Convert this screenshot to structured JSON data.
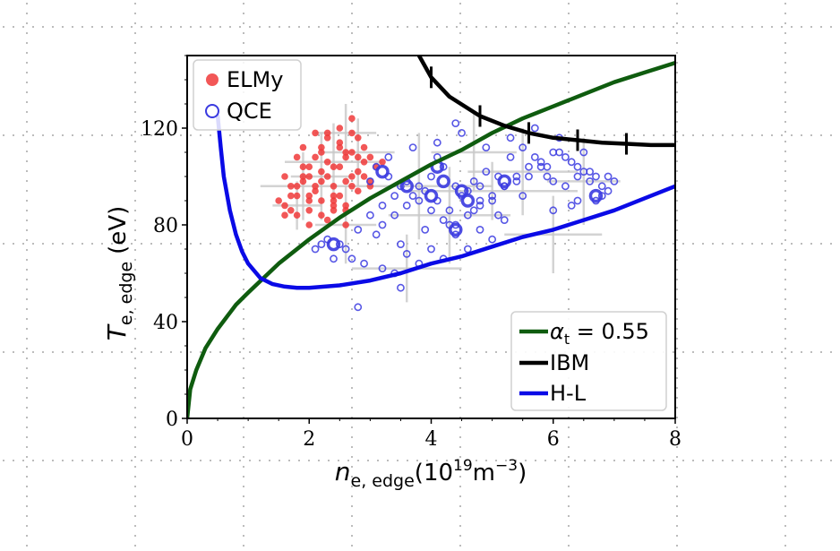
{
  "chart_data": {
    "type": "scatter",
    "title": "",
    "xlabel": {
      "base": "n",
      "sub": "e, edge",
      "unit_pre": "(10",
      "unit_sup1": "19",
      "unit_mid": "m",
      "unit_sup2": "−3",
      "unit_post": ")"
    },
    "ylabel": {
      "base": "T",
      "sub": "e, edge",
      "unit": "(eV)"
    },
    "xlim": [
      0,
      8
    ],
    "ylim": [
      0,
      150
    ],
    "x_ticks": [
      0,
      2,
      4,
      6,
      8
    ],
    "y_ticks": [
      0,
      40,
      80,
      120
    ],
    "x_tick_labels": [
      "0",
      "2",
      "4",
      "6",
      "8"
    ],
    "y_tick_labels": [
      "0",
      "40",
      "80",
      "120"
    ],
    "grid": false,
    "colors": {
      "elmy": "#f03a3a",
      "qce": "#3a3ae0",
      "alpha": "#0f5c0f",
      "ibm": "#000000",
      "hl": "#0a0ae6",
      "errorbar": "#c8c8c8",
      "frame": "#000000",
      "page_dots": "#8c8c8c"
    },
    "scatter_legend": {
      "placement": "top-left",
      "entries": [
        {
          "label": "ELMy",
          "marker": "filled-circle",
          "color_key": "elmy"
        },
        {
          "label": "QCE",
          "marker": "open-circle",
          "color_key": "qce"
        }
      ]
    },
    "line_legend": {
      "placement": "bottom-right",
      "entries": [
        {
          "label_math": "α",
          "label_sub": "t",
          "label_rest": " = 0.55",
          "color_key": "alpha"
        },
        {
          "label": "IBM",
          "color_key": "ibm"
        },
        {
          "label": "H-L",
          "color_key": "hl"
        }
      ]
    },
    "lines": [
      {
        "name": "α_t = 0.55",
        "color_key": "alpha",
        "x": [
          0.0,
          0.05,
          0.15,
          0.3,
          0.5,
          0.8,
          1.0,
          1.5,
          2.0,
          2.5,
          3.0,
          3.5,
          4.0,
          4.5,
          5.0,
          5.5,
          6.0,
          6.5,
          7.0,
          7.5,
          8.0
        ],
        "y": [
          0,
          12,
          20,
          29,
          37,
          47,
          52,
          64,
          74,
          83,
          91,
          98,
          105,
          111,
          118,
          124,
          129,
          134,
          139,
          143,
          147
        ]
      },
      {
        "name": "IBM",
        "color_key": "ibm",
        "x": [
          3.8,
          4.0,
          4.3,
          4.8,
          5.2,
          5.6,
          6.0,
          6.4,
          6.8,
          7.2,
          7.6,
          8.0
        ],
        "y": [
          150,
          141,
          133,
          125,
          121,
          118,
          116,
          115,
          114,
          113.5,
          113,
          113
        ]
      },
      {
        "name": "H-L",
        "color_key": "hl",
        "x": [
          0.5,
          0.55,
          0.6,
          0.7,
          0.8,
          0.9,
          1.0,
          1.2,
          1.4,
          1.6,
          1.8,
          2.0,
          2.5,
          3.0,
          3.5,
          4.0,
          4.5,
          5.0,
          5.5,
          6.0,
          6.5,
          7.0,
          7.5,
          8.0
        ],
        "y": [
          125,
          112,
          100,
          86,
          76,
          69,
          64,
          58,
          55.5,
          54.5,
          54,
          54,
          55,
          57,
          60,
          64,
          67,
          71,
          75,
          78,
          82,
          86,
          91,
          96
        ]
      }
    ],
    "ibm_ticks": {
      "x": [
        4.0,
        4.8,
        5.6,
        6.4,
        7.2
      ],
      "y": [
        141,
        125,
        118,
        115,
        113.5
      ]
    },
    "elmy": {
      "x": [
        1.6,
        1.7,
        1.8,
        1.9,
        2.0,
        2.0,
        2.1,
        2.2,
        2.3,
        2.4,
        2.5,
        2.6,
        2.7,
        2.8,
        2.9,
        3.0,
        1.8,
        2.0,
        2.2,
        2.4,
        2.6,
        2.8,
        3.0,
        1.7,
        1.9,
        2.1,
        2.3,
        2.5,
        2.7,
        2.9,
        1.6,
        1.8,
        2.0,
        2.2,
        2.4,
        2.6,
        2.8,
        3.1,
        1.9,
        2.1,
        2.3,
        2.5,
        2.7,
        2.2,
        2.4,
        2.6,
        2.5,
        2.7,
        2.3,
        2.6,
        1.8,
        2.0,
        2.2,
        2.4,
        2.9,
        3.2,
        1.7,
        2.1,
        2.5,
        2.8,
        1.9,
        2.3,
        2.7,
        2.0,
        2.4,
        2.6,
        2.2,
        3.0,
        1.5,
        1.6
      ],
      "y": [
        88,
        92,
        96,
        100,
        104,
        90,
        108,
        112,
        100,
        96,
        104,
        110,
        100,
        94,
        106,
        108,
        84,
        86,
        90,
        92,
        98,
        102,
        96,
        96,
        98,
        94,
        106,
        114,
        118,
        112,
        100,
        108,
        100,
        98,
        88,
        86,
        108,
        104,
        112,
        118,
        116,
        120,
        124,
        110,
        104,
        108,
        92,
        96,
        82,
        88,
        92,
        80,
        84,
        86,
        100,
        106,
        86,
        96,
        112,
        116,
        104,
        118,
        110,
        92,
        90,
        80,
        102,
        98,
        90,
        84
      ],
      "err_x": [
        {
          "x": 1.9,
          "y": 96,
          "xerr": 0.7,
          "yerr": 14
        },
        {
          "x": 2.4,
          "y": 106,
          "xerr": 0.8,
          "yerr": 16
        },
        {
          "x": 2.8,
          "y": 110,
          "xerr": 0.6,
          "yerr": 14
        },
        {
          "x": 2.2,
          "y": 100,
          "xerr": 0.5,
          "yerr": 18
        },
        {
          "x": 2.6,
          "y": 118,
          "xerr": 0.5,
          "yerr": 12
        },
        {
          "x": 1.8,
          "y": 88,
          "xerr": 0.4,
          "yerr": 10
        }
      ]
    },
    "qce": {
      "x": [
        2.1,
        2.3,
        2.5,
        2.8,
        3.0,
        3.2,
        3.4,
        3.6,
        3.8,
        4.0,
        4.2,
        4.4,
        4.6,
        4.8,
        5.0,
        5.2,
        5.4,
        5.6,
        5.8,
        6.0,
        6.2,
        6.4,
        6.6,
        6.8,
        7.0,
        3.1,
        3.3,
        3.5,
        3.7,
        3.9,
        4.1,
        4.3,
        4.5,
        4.7,
        4.9,
        5.1,
        5.3,
        5.5,
        5.7,
        5.9,
        6.1,
        6.3,
        6.5,
        6.7,
        6.9,
        3.2,
        3.4,
        3.6,
        3.8,
        4.0,
        4.2,
        4.4,
        4.6,
        4.8,
        5.0,
        5.2,
        5.4,
        5.6,
        5.8,
        6.0,
        6.2,
        6.4,
        6.6,
        2.4,
        2.6,
        2.9,
        3.1,
        3.5,
        3.9,
        4.3,
        4.7,
        5.1,
        5.5,
        5.9,
        6.3,
        6.7,
        3.0,
        3.3,
        3.7,
        4.1,
        4.5,
        4.9,
        5.3,
        5.7,
        6.1,
        6.5,
        6.9,
        2.2,
        2.7,
        3.2,
        3.6,
        4.0,
        4.4,
        4.8,
        5.2,
        6.0,
        6.4,
        6.8,
        3.4,
        3.8,
        4.2,
        4.6,
        5.0,
        2.8,
        3.5,
        4.4,
        4.1,
        4.8
      ],
      "y": [
        70,
        74,
        72,
        78,
        84,
        88,
        92,
        98,
        96,
        100,
        104,
        96,
        94,
        90,
        92,
        96,
        98,
        100,
        104,
        98,
        96,
        100,
        102,
        96,
        98,
        104,
        100,
        96,
        92,
        94,
        90,
        86,
        92,
        98,
        102,
        100,
        108,
        112,
        108,
        104,
        110,
        106,
        102,
        100,
        94,
        80,
        84,
        88,
        90,
        86,
        82,
        80,
        84,
        88,
        90,
        96,
        100,
        104,
        106,
        110,
        108,
        104,
        98,
        66,
        70,
        64,
        76,
        72,
        78,
        80,
        86,
        84,
        92,
        100,
        88,
        90,
        98,
        108,
        112,
        114,
        118,
        112,
        116,
        120,
        116,
        110,
        100,
        72,
        66,
        62,
        68,
        70,
        76,
        78,
        82,
        86,
        90,
        92,
        60,
        64,
        66,
        70,
        74,
        46,
        54,
        122,
        108,
        96
      ],
      "big": [
        {
          "x": 3.2,
          "y": 102
        },
        {
          "x": 3.6,
          "y": 96
        },
        {
          "x": 4.0,
          "y": 92
        },
        {
          "x": 4.5,
          "y": 94
        },
        {
          "x": 4.6,
          "y": 90
        },
        {
          "x": 4.2,
          "y": 98
        },
        {
          "x": 5.2,
          "y": 98
        },
        {
          "x": 6.7,
          "y": 92
        },
        {
          "x": 4.1,
          "y": 104
        },
        {
          "x": 2.4,
          "y": 72
        },
        {
          "x": 4.4,
          "y": 78
        }
      ],
      "err_x": [
        {
          "x": 3.8,
          "y": 96,
          "xerr": 1.2,
          "yerr": 22
        },
        {
          "x": 4.3,
          "y": 84,
          "xerr": 1.0,
          "yerr": 20
        },
        {
          "x": 5.5,
          "y": 102,
          "xerr": 0.9,
          "yerr": 18
        },
        {
          "x": 6.0,
          "y": 76,
          "xerr": 0.8,
          "yerr": 16
        },
        {
          "x": 3.6,
          "y": 62,
          "xerr": 0.9,
          "yerr": 14
        },
        {
          "x": 4.7,
          "y": 110,
          "xerr": 0.7,
          "yerr": 16
        },
        {
          "x": 6.5,
          "y": 98,
          "xerr": 0.6,
          "yerr": 18
        },
        {
          "x": 2.6,
          "y": 80,
          "xerr": 0.5,
          "yerr": 16
        },
        {
          "x": 5.0,
          "y": 94,
          "xerr": 1.4,
          "yerr": 12
        }
      ]
    }
  }
}
